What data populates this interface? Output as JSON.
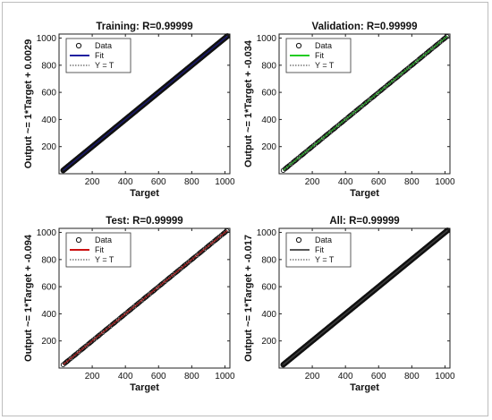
{
  "chart_data": [
    {
      "type": "scatter",
      "title": "Training: R=0.99999",
      "xlabel": "Target",
      "ylabel": "Output ~= 1*Target + 0.0029",
      "xlim": [
        0,
        1030
      ],
      "ylim": [
        0,
        1030
      ],
      "xticks": [
        "200",
        "400",
        "600",
        "800",
        "1000"
      ],
      "yticks": [
        "200",
        "400",
        "600",
        "800",
        "1000"
      ],
      "legend": [
        "Data",
        "Fit",
        "Y = T"
      ],
      "legend_position": "top-left",
      "fit_color": "#1f1fa0",
      "fit": {
        "slope": 1,
        "intercept": 0.0029
      },
      "data_range": [
        25,
        1015
      ],
      "density": "dense"
    },
    {
      "type": "scatter",
      "title": "Validation: R=0.99999",
      "xlabel": "Target",
      "ylabel": "Output ~= 1*Target + -0.034",
      "xlim": [
        0,
        1030
      ],
      "ylim": [
        0,
        1030
      ],
      "xticks": [
        "200",
        "400",
        "600",
        "800",
        "1000"
      ],
      "yticks": [
        "200",
        "400",
        "600",
        "800",
        "1000"
      ],
      "legend": [
        "Data",
        "Fit",
        "Y = T"
      ],
      "legend_position": "top-left",
      "fit_color": "#22cc22",
      "fit": {
        "slope": 1,
        "intercept": -0.034
      },
      "data_range": [
        25,
        1015
      ],
      "density": "sparse"
    },
    {
      "type": "scatter",
      "title": "Test: R=0.99999",
      "xlabel": "Target",
      "ylabel": "Output ~= 1*Target + -0.094",
      "xlim": [
        0,
        1030
      ],
      "ylim": [
        0,
        1030
      ],
      "xticks": [
        "200",
        "400",
        "600",
        "800",
        "1000"
      ],
      "yticks": [
        "200",
        "400",
        "600",
        "800",
        "1000"
      ],
      "legend": [
        "Data",
        "Fit",
        "Y = T"
      ],
      "legend_position": "top-left",
      "fit_color": "#cc1111",
      "fit": {
        "slope": 1,
        "intercept": -0.094
      },
      "data_range": [
        25,
        1015
      ],
      "density": "sparse"
    },
    {
      "type": "scatter",
      "title": "All: R=0.99999",
      "xlabel": "Target",
      "ylabel": "Output ~= 1*Target + -0.017",
      "xlim": [
        0,
        1030
      ],
      "ylim": [
        0,
        1030
      ],
      "xticks": [
        "200",
        "400",
        "600",
        "800",
        "1000"
      ],
      "yticks": [
        "200",
        "400",
        "600",
        "800",
        "1000"
      ],
      "legend": [
        "Data",
        "Fit",
        "Y = T"
      ],
      "legend_position": "top-left",
      "fit_color": "#555555",
      "fit": {
        "slope": 1,
        "intercept": -0.017
      },
      "data_range": [
        25,
        1015
      ],
      "density": "dense"
    }
  ]
}
